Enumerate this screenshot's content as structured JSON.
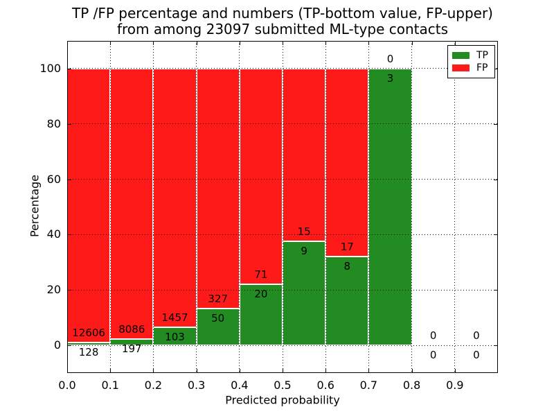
{
  "header": {
    "line1": "TP /FP percentage and numbers (TP-bottom value, FP-upper)",
    "line2": "from among 23097 submitted ML-type contacts"
  },
  "colors": {
    "tp_green": "#228B22",
    "fp_red": "#FF1A1A",
    "grid": "#000000",
    "text": "#000000",
    "background": "#FFFFFF"
  },
  "legend": {
    "entries": [
      {
        "label": "TP",
        "color_key": "tp_green"
      },
      {
        "label": "FP",
        "color_key": "fp_red"
      }
    ],
    "position": "upper-right"
  },
  "chart_data": {
    "type": "bar",
    "stacked": true,
    "normalized_to_percent": true,
    "title": "TP /FP percentage and numbers (TP-bottom value, FP-upper)\nfrom among 23097 submitted ML-type contacts",
    "total_contacts": 23097,
    "xlabel": "Predicted probability",
    "ylabel": "Percentage",
    "xlim": [
      0.0,
      1.0
    ],
    "ylim": [
      -10,
      110
    ],
    "x_ticks": [
      0.0,
      0.1,
      0.2,
      0.3,
      0.4,
      0.5,
      0.6,
      0.7,
      0.8,
      0.9
    ],
    "x_tick_labels": [
      "0.0",
      "0.1",
      "0.2",
      "0.3",
      "0.4",
      "0.5",
      "0.6",
      "0.7",
      "0.8",
      "0.9"
    ],
    "y_ticks": [
      0,
      20,
      40,
      60,
      80,
      100
    ],
    "y_tick_labels": [
      "0",
      "20",
      "40",
      "60",
      "80",
      "100"
    ],
    "grid": true,
    "legend_entries": [
      "TP",
      "FP"
    ],
    "series_note": "TP green bottom segment, FP red upper segment; labels show raw counts (TP below green top, FP above green top)",
    "bins": [
      {
        "range": [
          0.0,
          0.1
        ],
        "tp": 128,
        "fp": 12606,
        "tp_percent": 1.01
      },
      {
        "range": [
          0.1,
          0.2
        ],
        "tp": 197,
        "fp": 8086,
        "tp_percent": 2.38
      },
      {
        "range": [
          0.2,
          0.3
        ],
        "tp": 103,
        "fp": 1457,
        "tp_percent": 6.6
      },
      {
        "range": [
          0.3,
          0.4
        ],
        "tp": 50,
        "fp": 327,
        "tp_percent": 13.26
      },
      {
        "range": [
          0.4,
          0.5
        ],
        "tp": 20,
        "fp": 71,
        "tp_percent": 21.98
      },
      {
        "range": [
          0.5,
          0.6
        ],
        "tp": 9,
        "fp": 15,
        "tp_percent": 37.5
      },
      {
        "range": [
          0.6,
          0.7
        ],
        "tp": 8,
        "fp": 17,
        "tp_percent": 32.0
      },
      {
        "range": [
          0.7,
          0.8
        ],
        "tp": 3,
        "fp": 0,
        "tp_percent": 100.0
      },
      {
        "range": [
          0.8,
          0.9
        ],
        "tp": 0,
        "fp": 0,
        "tp_percent": 0
      },
      {
        "range": [
          0.9,
          1.0
        ],
        "tp": 0,
        "fp": 0,
        "tp_percent": 0
      }
    ]
  }
}
